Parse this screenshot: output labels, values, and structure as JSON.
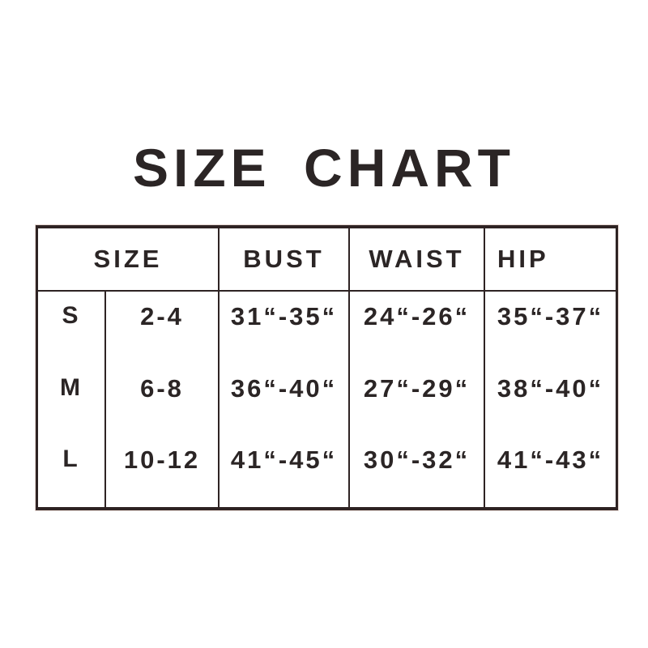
{
  "title": "SIZE CHART",
  "table": {
    "headers": {
      "size": "SIZE",
      "bust": "BUST",
      "waist": "WAIST",
      "hip": "HIP"
    },
    "rows": [
      {
        "letter": "S",
        "size_range": "2-4",
        "bust": "31“-35“",
        "waist": "24“-26“",
        "hip": "35“-37“"
      },
      {
        "letter": "M",
        "size_range": "6-8",
        "bust": "36“-40“",
        "waist": "27“-29“",
        "hip": "38“-40“"
      },
      {
        "letter": "L",
        "size_range": "10-12",
        "bust": "41“-45“",
        "waist": "30“-32“",
        "hip": "41“-43“"
      }
    ]
  },
  "colors": {
    "line": "#2e2323",
    "text": "#2b2525",
    "background": "#ffffff"
  },
  "chart_data": {
    "type": "table",
    "title": "SIZE CHART",
    "columns": [
      "SIZE",
      "BUST",
      "WAIST",
      "HIP"
    ],
    "size_header_colspan": 2,
    "rows": [
      [
        "S",
        "2-4",
        "31“-35“",
        "24“-26“",
        "35“-37“"
      ],
      [
        "M",
        "6-8",
        "36“-40“",
        "27“-29“",
        "38“-40“"
      ],
      [
        "L",
        "10-12",
        "41“-45“",
        "30“-32“",
        "41“-43“"
      ]
    ],
    "units": "inches (“)"
  }
}
